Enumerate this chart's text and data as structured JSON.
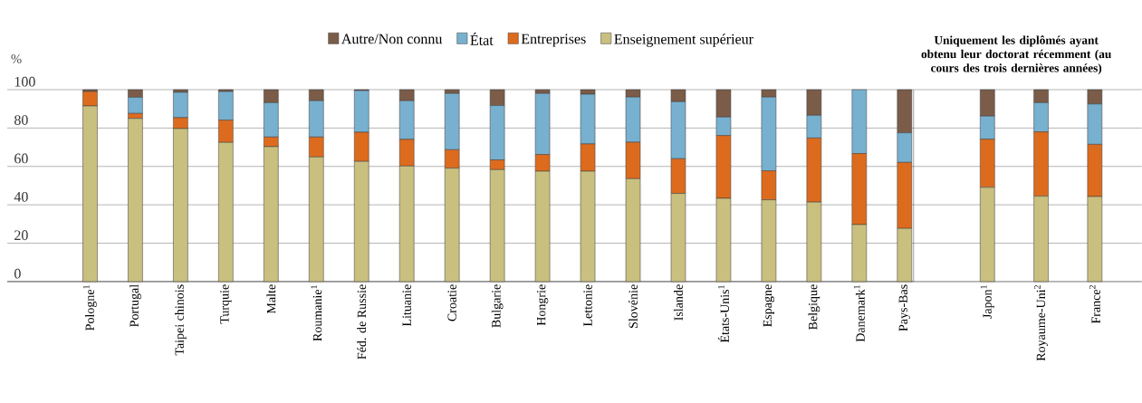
{
  "chart_data": [
    {
      "type": "bar",
      "stacked": true,
      "ylabel": "%",
      "ylim": [
        0,
        100
      ],
      "yticks": [
        0,
        20,
        40,
        60,
        80,
        100
      ],
      "grid": "y",
      "legend": "top",
      "categories": [
        "Pologne$^{1}$",
        "Portugal",
        "Taipei chinois",
        "Turquie",
        "Malte",
        "Roumanie$^{1}$",
        "Féd. de Russie",
        "Lituanie",
        "Croatie",
        "Bulgarie",
        "Hongrie",
        "Lettonie",
        "Slovénie",
        "Islande",
        "États-Unis$^{1}$",
        "Espagne",
        "Belgique",
        "Danemark$^{1}$",
        "Pays-Bas"
      ],
      "series": [
        {
          "name": "Enseignement supérieur",
          "color": "#c9bf7f",
          "values": [
            91.5,
            85.0,
            79.7,
            72.5,
            70.3,
            64.9,
            62.6,
            60.2,
            59.1,
            58.3,
            57.5,
            57.5,
            53.6,
            45.9,
            43.4,
            42.6,
            41.4,
            29.7,
            27.7
          ]
        },
        {
          "name": "Entreprises",
          "color": "#dd6b1e",
          "values": [
            7.5,
            2.6,
            5.7,
            11.6,
            5.0,
            10.4,
            15.2,
            13.9,
            9.6,
            5.1,
            8.7,
            14.2,
            19.0,
            18.1,
            32.7,
            15.1,
            33.4,
            37.0,
            34.4
          ]
        },
        {
          "name": "État",
          "color": "#78b0cf",
          "values": [
            0,
            8.4,
            13.2,
            14.9,
            17.9,
            18.9,
            21.7,
            20.1,
            29.3,
            28.3,
            31.8,
            25.9,
            23.5,
            29.7,
            9.6,
            38.4,
            11.8,
            33.3,
            15.4
          ]
        },
        {
          "name": "Autre/Non connu",
          "color": "#7a5c49",
          "values": [
            1.0,
            4.0,
            1.4,
            1.0,
            6.8,
            5.8,
            0.5,
            5.8,
            2.0,
            8.3,
            2.0,
            2.4,
            3.9,
            6.3,
            14.3,
            3.9,
            13.4,
            0,
            22.5
          ]
        }
      ]
    },
    {
      "type": "bar",
      "stacked": true,
      "title": "Uniquement les diplômés ayant obtenu leur doctorat récemment (au cours des trois dernières années)",
      "ylim": [
        0,
        100
      ],
      "yticks": [
        0,
        20,
        40,
        60,
        80,
        100
      ],
      "grid": "y",
      "tick_labels": "x",
      "categories": [
        "Japon$^{1}$",
        "Royaume-Uni$^{2}$",
        "France$^{2}$"
      ],
      "series": [
        {
          "color": "#c9bf7f",
          "values": [
            49.1,
            44.5,
            44.3
          ]
        },
        {
          "color": "#dd6b1e",
          "values": [
            25.1,
            33.5,
            27.2
          ]
        },
        {
          "color": "#78b0cf",
          "values": [
            12.0,
            15.2,
            21.0
          ]
        },
        {
          "color": "#7a5c49",
          "values": [
            13.8,
            6.8,
            7.5
          ]
        }
      ]
    }
  ]
}
